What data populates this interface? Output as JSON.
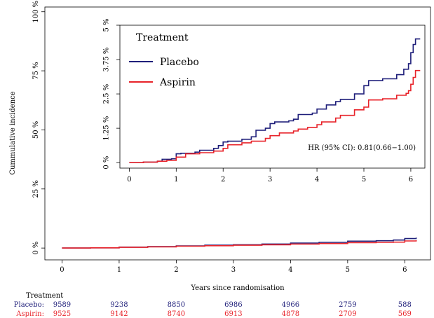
{
  "colors": {
    "placebo": "#1f1f7a",
    "aspirin": "#e8232a"
  },
  "chart_data": [
    {
      "type": "line",
      "panel": "main",
      "xlabel": "Years since randomisation",
      "ylabel": "Cummulative incidence",
      "xlim": [
        -0.3,
        6.45
      ],
      "ylim": [
        -0.05,
        1.02
      ],
      "x_ticks": [
        0,
        1,
        2,
        3,
        4,
        5,
        6
      ],
      "y_ticks": [
        {
          "value": 0,
          "label": "0 %"
        },
        {
          "value": 0.25,
          "label": "25 %"
        },
        {
          "value": 0.5,
          "label": "50 %"
        },
        {
          "value": 0.75,
          "label": "75 %"
        },
        {
          "value": 1,
          "label": "100 %"
        }
      ],
      "series": [
        {
          "name": "Placebo",
          "color": "#1f1f7a",
          "x": [
            0,
            0.5,
            1,
            1.5,
            2,
            2.5,
            3,
            3.5,
            4,
            4.5,
            5,
            5.5,
            5.8,
            6.0,
            6.2
          ],
          "y": [
            0,
            0.001,
            0.004,
            0.006,
            0.009,
            0.012,
            0.014,
            0.017,
            0.021,
            0.024,
            0.029,
            0.031,
            0.034,
            0.04,
            0.044
          ]
        },
        {
          "name": "Aspirin",
          "color": "#e8232a",
          "x": [
            0,
            0.5,
            1,
            1.5,
            2,
            2.5,
            3,
            3.5,
            4,
            4.5,
            5,
            5.5,
            5.8,
            6.0,
            6.2
          ],
          "y": [
            0,
            0.001,
            0.003,
            0.005,
            0.008,
            0.01,
            0.012,
            0.014,
            0.017,
            0.019,
            0.023,
            0.024,
            0.025,
            0.03,
            0.033
          ]
        }
      ]
    },
    {
      "type": "line",
      "panel": "inset",
      "legend_title": "Treatment",
      "annotation": "HR (95% CI): 0.81(0.66−1.00)",
      "xlim": [
        -0.2,
        6.3
      ],
      "ylim": [
        -0.002,
        0.05
      ],
      "x_ticks": [
        0,
        1,
        2,
        3,
        4,
        5,
        6
      ],
      "y_ticks": [
        {
          "value": 0,
          "label": "0 %"
        },
        {
          "value": 0.0125,
          "label": "1.25 %"
        },
        {
          "value": 0.025,
          "label": "2.5 %"
        },
        {
          "value": 0.0375,
          "label": "3.75 %"
        },
        {
          "value": 0.05,
          "label": "5 %"
        }
      ],
      "series": [
        {
          "name": "Placebo",
          "color": "#1f1f7a",
          "x": [
            0,
            0.3,
            0.6,
            0.7,
            0.9,
            1.0,
            1.1,
            1.4,
            1.5,
            1.8,
            1.9,
            2.0,
            2.1,
            2.4,
            2.6,
            2.7,
            2.9,
            3.0,
            3.1,
            3.4,
            3.5,
            3.6,
            3.9,
            4.0,
            4.2,
            4.4,
            4.5,
            4.8,
            5.0,
            5.1,
            5.4,
            5.7,
            5.85,
            5.95,
            6.0,
            6.05,
            6.1,
            6.2
          ],
          "y": [
            0,
            0.0002,
            0.0005,
            0.0012,
            0.0014,
            0.0032,
            0.0034,
            0.0038,
            0.0045,
            0.0052,
            0.0062,
            0.0075,
            0.0078,
            0.0085,
            0.0094,
            0.0118,
            0.0125,
            0.0142,
            0.0148,
            0.0152,
            0.0158,
            0.0175,
            0.018,
            0.0195,
            0.021,
            0.0222,
            0.023,
            0.025,
            0.028,
            0.0298,
            0.0305,
            0.032,
            0.034,
            0.036,
            0.04,
            0.043,
            0.045,
            0.045
          ]
        },
        {
          "name": "Aspirin",
          "color": "#e8232a",
          "x": [
            0,
            0.3,
            0.6,
            0.8,
            1.0,
            1.2,
            1.5,
            1.8,
            2.0,
            2.1,
            2.4,
            2.6,
            2.9,
            3.0,
            3.2,
            3.5,
            3.6,
            3.8,
            4.0,
            4.1,
            4.4,
            4.5,
            4.8,
            5.0,
            5.1,
            5.4,
            5.7,
            5.9,
            5.95,
            6.0,
            6.05,
            6.1,
            6.2
          ],
          "y": [
            0,
            0.0002,
            0.0005,
            0.0008,
            0.002,
            0.0032,
            0.0036,
            0.0042,
            0.0052,
            0.0065,
            0.0072,
            0.0078,
            0.0088,
            0.0098,
            0.0108,
            0.0115,
            0.0122,
            0.0128,
            0.0138,
            0.0148,
            0.0162,
            0.0172,
            0.0192,
            0.0202,
            0.0228,
            0.0232,
            0.0245,
            0.0252,
            0.0262,
            0.0285,
            0.031,
            0.0335,
            0.0335
          ]
        }
      ]
    }
  ],
  "risk_table": {
    "title": "Treatment",
    "rows": [
      {
        "label": "Placebo:",
        "color": "#1f1f7a",
        "values": [
          "9589",
          "9238",
          "8850",
          "6986",
          "4966",
          "2759",
          "588"
        ]
      },
      {
        "label": "Aspirin:",
        "color": "#e8232a",
        "values": [
          "9525",
          "9142",
          "8740",
          "6913",
          "4878",
          "2709",
          "569"
        ]
      }
    ]
  }
}
